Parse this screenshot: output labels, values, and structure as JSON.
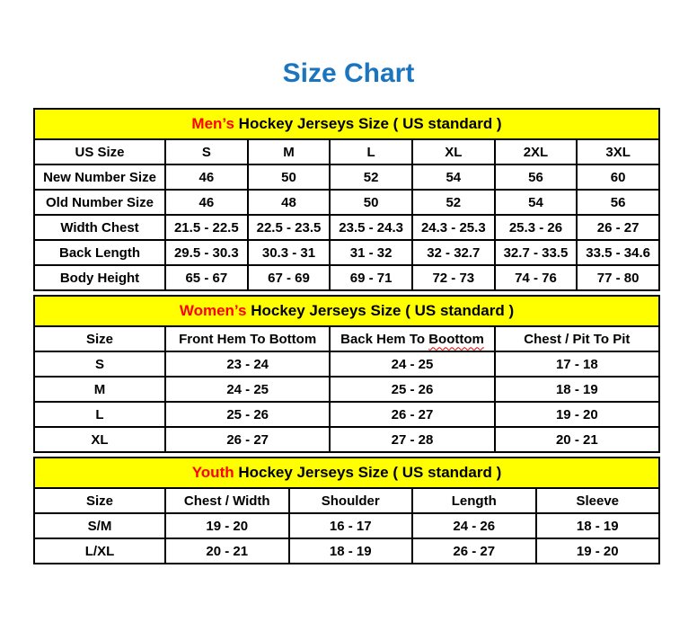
{
  "page": {
    "title": "Size Chart"
  },
  "colors": {
    "title_blue": "#1B74BE",
    "accent_red": "#FF0000",
    "caption_yellow": "#FFFF00",
    "wavy_underline_red": "#E00000",
    "border_black": "#000000"
  },
  "sections": [
    {
      "id": "mens",
      "caption": {
        "highlight": "Men’s",
        "rest": " Hockey Jerseys Size ( US standard )"
      },
      "columns": [
        "US Size",
        "S",
        "M",
        "L",
        "XL",
        "2XL",
        "3XL"
      ],
      "rows": [
        [
          "New Number Size",
          "46",
          "50",
          "52",
          "54",
          "56",
          "60"
        ],
        [
          "Old Number Size",
          "46",
          "48",
          "50",
          "52",
          "54",
          "56"
        ],
        [
          "Width Chest",
          "21.5 - 22.5",
          "22.5 - 23.5",
          "23.5 - 24.3",
          "24.3 - 25.3",
          "25.3 - 26",
          "26 - 27"
        ],
        [
          "Back Length",
          "29.5 - 30.3",
          "30.3 - 31",
          "31 - 32",
          "32 - 32.7",
          "32.7 - 33.5",
          "33.5 - 34.6"
        ],
        [
          "Body Height",
          "65 - 67",
          "67 - 69",
          "69 - 71",
          "72 - 73",
          "74 - 76",
          "77 - 80"
        ]
      ]
    },
    {
      "id": "womens",
      "caption": {
        "highlight": "Women’s",
        "rest": " Hockey Jerseys Size ( US standard )"
      },
      "columns": [
        "Size",
        "Front Hem To Bottom",
        "Back Hem To Boottom",
        "Chest / Pit To Pit"
      ],
      "typo_wavy_word": "Boottom",
      "rows": [
        [
          "S",
          "23 - 24",
          "24 - 25",
          "17 - 18"
        ],
        [
          "M",
          "24 - 25",
          "25 - 26",
          "18 - 19"
        ],
        [
          "L",
          "25 - 26",
          "26 - 27",
          "19 - 20"
        ],
        [
          "XL",
          "26 - 27",
          "27 - 28",
          "20 - 21"
        ]
      ]
    },
    {
      "id": "youth",
      "caption": {
        "highlight": "Youth",
        "rest": " Hockey Jerseys Size ( US standard )"
      },
      "columns": [
        "Size",
        "Chest / Width",
        "Shoulder",
        "Length",
        "Sleeve"
      ],
      "rows": [
        [
          "S/M",
          "19 - 20",
          "16 - 17",
          "24 - 26",
          "18 - 19"
        ],
        [
          "L/XL",
          "20 - 21",
          "18 - 19",
          "26 - 27",
          "19 - 20"
        ]
      ]
    }
  ]
}
